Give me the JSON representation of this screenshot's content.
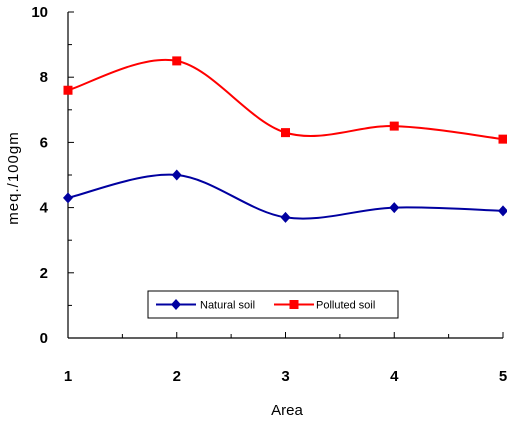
{
  "chart_data": {
    "type": "line",
    "title": "",
    "xlabel": "Area",
    "ylabel": "meq./100gm",
    "x": [
      1,
      2,
      3,
      4,
      5
    ],
    "x_ticks": [
      "1",
      "2",
      "3",
      "4",
      "5"
    ],
    "y_ticks": [
      "0",
      "2",
      "4",
      "6",
      "8",
      "10"
    ],
    "xlim": [
      1,
      5
    ],
    "ylim": [
      0,
      10
    ],
    "grid": false,
    "legend_position": "bottom-center",
    "series": [
      {
        "name": "Natural soil",
        "values": [
          4.3,
          5.0,
          3.7,
          4.0,
          3.9
        ],
        "color": "#0000a0",
        "marker": "diamond"
      },
      {
        "name": "Polluted soil",
        "values": [
          7.6,
          8.5,
          6.3,
          6.5,
          6.1
        ],
        "color": "#ff0000",
        "marker": "square"
      }
    ]
  }
}
